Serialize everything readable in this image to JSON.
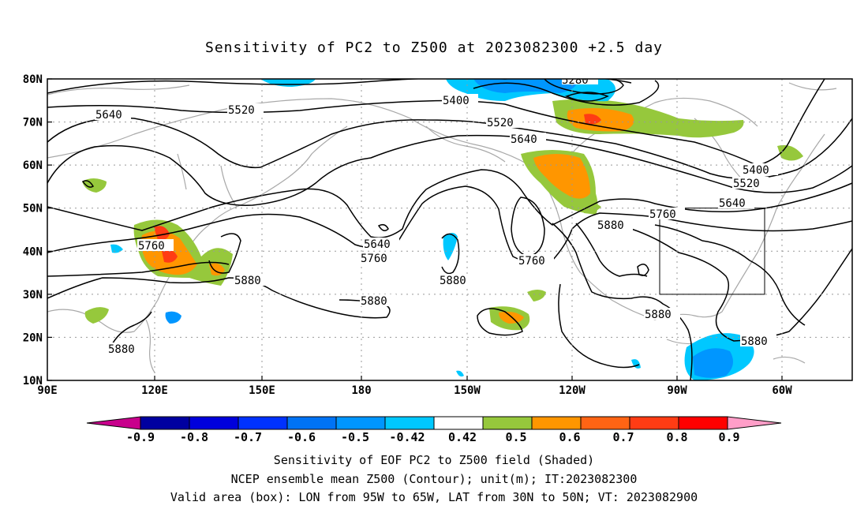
{
  "title": "Sensitivity of PC2 to Z500 at 2023082300 +2.5 day",
  "axes": {
    "lat_labels": [
      "80N",
      "70N",
      "60N",
      "50N",
      "40N",
      "30N",
      "20N",
      "10N"
    ],
    "lon_labels": [
      "90E",
      "120E",
      "150E",
      "180",
      "150W",
      "120W",
      "90W",
      "60W"
    ]
  },
  "contour_labels": [
    "5280",
    "5400",
    "5520",
    "5640",
    "5400",
    "5520",
    "5640",
    "5520",
    "5640",
    "5760",
    "5880",
    "5640",
    "5760",
    "5760",
    "5880",
    "5880",
    "5880",
    "5760",
    "5880",
    "5880",
    "5880"
  ],
  "colorbar": {
    "labels": [
      "-0.9",
      "-0.8",
      "-0.7",
      "-0.6",
      "-0.5",
      "-0.42",
      "0.42",
      "0.5",
      "0.6",
      "0.7",
      "0.8",
      "0.9"
    ],
    "colors": [
      "#0000a0",
      "#0000dc",
      "#0032ff",
      "#0073f5",
      "#0096ff",
      "#00c8ff",
      "#ffffff",
      "#96c83c",
      "#ff9600",
      "#ff6414",
      "#ff3c14",
      "#ff0000"
    ],
    "low_color": "#c8008c",
    "high_color": "#ff9ec8"
  },
  "captions": [
    "Sensitivity of EOF PC2 to Z500 field (Shaded)",
    "NCEP ensemble mean Z500 (Contour); unit(m); IT:2023082300",
    "Valid area (box): LON from 95W to 65W, LAT from 30N to 50N; VT: 2023082900"
  ]
}
